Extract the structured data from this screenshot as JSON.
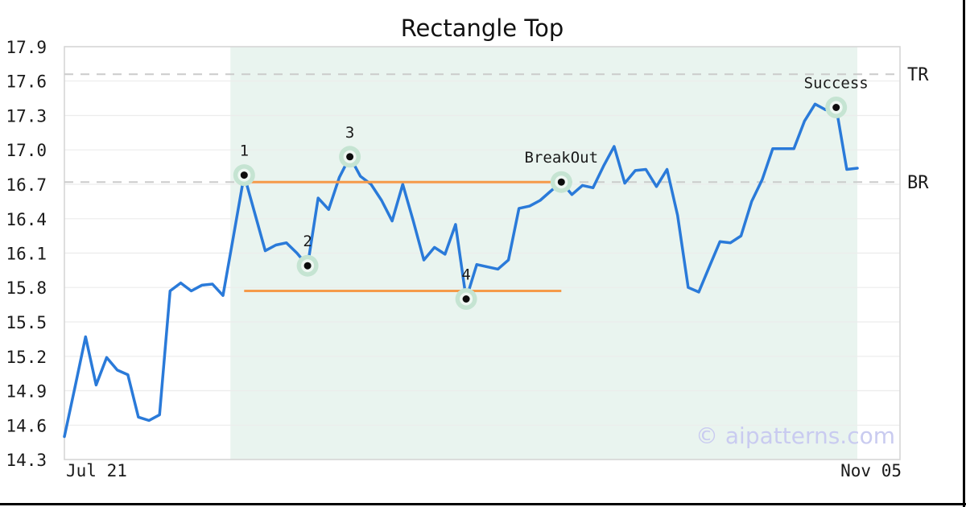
{
  "chart_data": {
    "type": "line",
    "title": "Rectangle Top",
    "ylim": [
      14.3,
      17.9
    ],
    "y_ticks": [
      14.3,
      14.6,
      14.9,
      15.2,
      15.5,
      15.8,
      16.1,
      16.4,
      16.7,
      17.0,
      17.3,
      17.6,
      17.9
    ],
    "x_tick_labels": [
      "Jul 21",
      "Nov 05"
    ],
    "grid": "horizontal",
    "legend": false,
    "values": [
      14.5,
      14.93,
      15.37,
      14.95,
      15.19,
      15.08,
      15.04,
      14.67,
      14.64,
      14.69,
      15.77,
      15.84,
      15.77,
      15.82,
      15.83,
      15.73,
      16.25,
      16.78,
      16.45,
      16.12,
      16.17,
      16.19,
      16.1,
      15.99,
      16.58,
      16.48,
      16.76,
      16.94,
      16.77,
      16.7,
      16.56,
      16.38,
      16.7,
      16.38,
      16.04,
      16.15,
      16.09,
      16.35,
      15.7,
      16.0,
      15.98,
      15.96,
      16.04,
      16.49,
      16.51,
      16.56,
      16.64,
      16.72,
      16.61,
      16.69,
      16.67,
      16.86,
      17.03,
      16.71,
      16.82,
      16.83,
      16.68,
      16.83,
      16.43,
      15.8,
      15.76,
      15.98,
      16.2,
      16.19,
      16.25,
      16.55,
      16.74,
      17.01,
      17.01,
      17.01,
      17.25,
      17.4,
      17.35,
      17.37,
      16.83,
      16.84
    ],
    "annotations": [
      {
        "label": "1",
        "index": 17,
        "value": 16.78
      },
      {
        "label": "2",
        "index": 23,
        "value": 15.99
      },
      {
        "label": "3",
        "index": 27,
        "value": 16.94
      },
      {
        "label": "4",
        "index": 38,
        "value": 15.7
      },
      {
        "label": "BreakOut",
        "index": 47,
        "value": 16.72
      },
      {
        "label": "Success",
        "index": 73,
        "value": 17.37
      }
    ],
    "levels": [
      {
        "label": "TR",
        "value": 17.66
      },
      {
        "label": "BR",
        "value": 16.72
      }
    ],
    "rectangle": {
      "top_value": 16.72,
      "bottom_value": 15.77,
      "start_index": 17,
      "end_index": 47
    },
    "pattern_region": {
      "start_index": 15.7,
      "end_index": 75
    },
    "watermark": "© aipatterns.com",
    "colors": {
      "line": "#2a7ad9",
      "rectangle": "#f59a49",
      "pattern_region": "#e9f4ef",
      "dashed": "#cbcbcb",
      "grid": "#ececec",
      "border": "#d4d4d4",
      "text": "#1a1a1a",
      "marker_ring": "#c5e4d2",
      "marker_inner": "#eef7f2",
      "marker_dot": "#0d0d0d",
      "watermark": "#c9cbf0",
      "frame_rule": "#000000"
    }
  }
}
